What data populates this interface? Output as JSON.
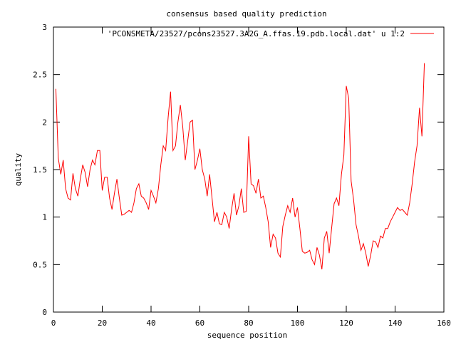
{
  "chart_data": {
    "type": "line",
    "title": "consensus based quality prediction",
    "xlabel": "sequence position",
    "ylabel": "quality",
    "xlim": [
      0,
      160
    ],
    "ylim": [
      0,
      3
    ],
    "x_ticks": [
      0,
      20,
      40,
      60,
      80,
      100,
      120,
      140,
      160
    ],
    "x_tick_labels": [
      "0",
      "20",
      "40",
      "60",
      "80",
      "100",
      "120",
      "140",
      "160"
    ],
    "y_ticks": [
      0,
      0.5,
      1,
      1.5,
      2,
      2.5,
      3
    ],
    "y_tick_labels": [
      "0",
      "0.5",
      "1",
      "1.5",
      "2",
      "2.5",
      "3"
    ],
    "grid": false,
    "legend_position": "top-right",
    "series_color": "#ff0000",
    "series": [
      {
        "name": "'PCONSMETA/23527/pcons23527.3A2G_A.ffas.19.pdb.local.dat' u 1:2",
        "x": [
          1,
          2,
          3,
          4,
          5,
          6,
          7,
          8,
          9,
          10,
          11,
          12,
          13,
          14,
          15,
          16,
          17,
          18,
          19,
          20,
          21,
          22,
          23,
          24,
          25,
          26,
          27,
          28,
          29,
          30,
          31,
          32,
          33,
          34,
          35,
          36,
          37,
          38,
          39,
          40,
          41,
          42,
          43,
          44,
          45,
          46,
          47,
          48,
          49,
          50,
          51,
          52,
          53,
          54,
          55,
          56,
          57,
          58,
          59,
          60,
          61,
          62,
          63,
          64,
          65,
          66,
          67,
          68,
          69,
          70,
          71,
          72,
          73,
          74,
          75,
          76,
          77,
          78,
          79,
          80,
          81,
          82,
          83,
          84,
          85,
          86,
          87,
          88,
          89,
          90,
          91,
          92,
          93,
          94,
          95,
          96,
          97,
          98,
          99,
          100,
          101,
          102,
          103,
          104,
          105,
          106,
          107,
          108,
          109,
          110,
          111,
          112,
          113,
          114,
          115,
          116,
          117,
          118,
          119,
          120,
          121,
          122,
          123,
          124,
          125,
          126,
          127,
          128,
          129,
          130,
          131,
          132,
          133,
          134,
          135,
          136,
          137,
          138,
          139,
          140,
          141,
          142,
          143,
          144,
          145,
          146,
          147,
          148,
          149,
          150,
          151,
          152
        ],
        "y": [
          2.35,
          1.62,
          1.45,
          1.6,
          1.3,
          1.2,
          1.18,
          1.46,
          1.3,
          1.22,
          1.4,
          1.55,
          1.47,
          1.32,
          1.5,
          1.6,
          1.55,
          1.7,
          1.7,
          1.28,
          1.42,
          1.42,
          1.2,
          1.08,
          1.25,
          1.4,
          1.2,
          1.02,
          1.03,
          1.05,
          1.07,
          1.05,
          1.15,
          1.3,
          1.35,
          1.22,
          1.2,
          1.15,
          1.08,
          1.28,
          1.22,
          1.15,
          1.3,
          1.55,
          1.75,
          1.7,
          2.05,
          2.32,
          1.7,
          1.75,
          2.0,
          2.18,
          1.95,
          1.6,
          1.8,
          2.0,
          2.02,
          1.5,
          1.6,
          1.72,
          1.5,
          1.4,
          1.22,
          1.45,
          1.2,
          0.95,
          1.05,
          0.93,
          0.92,
          1.05,
          1.0,
          0.88,
          1.08,
          1.25,
          1.02,
          1.12,
          1.3,
          1.05,
          1.06,
          1.85,
          1.35,
          1.33,
          1.25,
          1.4,
          1.2,
          1.22,
          1.1,
          0.95,
          0.68,
          0.82,
          0.78,
          0.62,
          0.58,
          0.9,
          1.02,
          1.12,
          1.05,
          1.2,
          1.0,
          1.1,
          0.88,
          0.64,
          0.62,
          0.63,
          0.65,
          0.55,
          0.5,
          0.68,
          0.6,
          0.45,
          0.78,
          0.85,
          0.62,
          0.88,
          1.14,
          1.2,
          1.12,
          1.45,
          1.65,
          2.38,
          2.25,
          1.38,
          1.18,
          0.92,
          0.8,
          0.65,
          0.72,
          0.62,
          0.48,
          0.6,
          0.75,
          0.74,
          0.68,
          0.8,
          0.78,
          0.88,
          0.88,
          0.95,
          1.0,
          1.05,
          1.1,
          1.07,
          1.08,
          1.05,
          1.02,
          1.15,
          1.35,
          1.58,
          1.75,
          2.15,
          1.85,
          2.62
        ]
      }
    ]
  }
}
